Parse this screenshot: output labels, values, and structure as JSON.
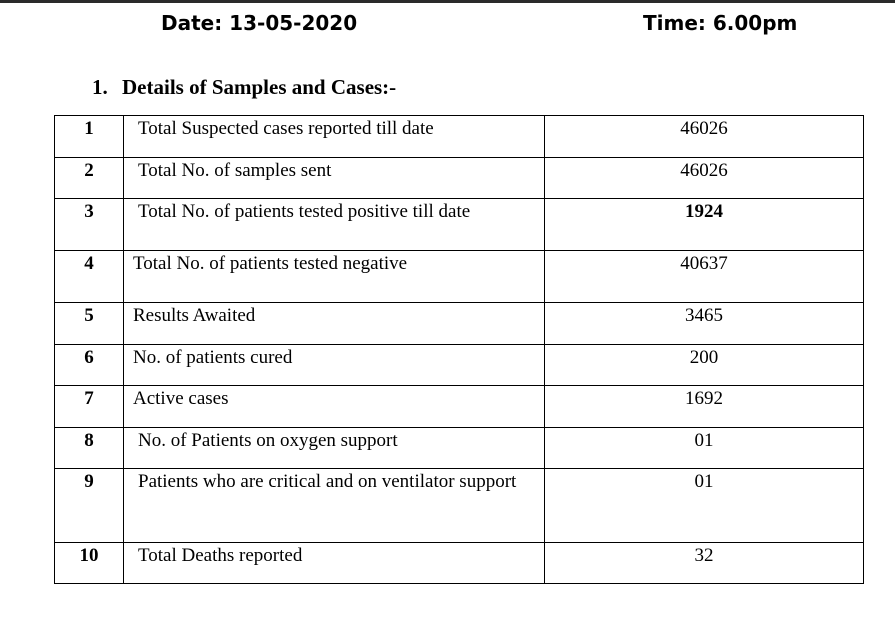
{
  "header": {
    "date": "Date: 13-05-2020",
    "time": "Time: 6.00pm"
  },
  "section": {
    "number": "1.",
    "title": "Details of Samples and Cases:-"
  },
  "rows": [
    {
      "no": "1",
      "label": "Total Suspected cases reported till date",
      "value": "46026"
    },
    {
      "no": "2",
      "label": "Total No. of samples sent",
      "value": "46026"
    },
    {
      "no": "3",
      "label": "Total No. of patients tested positive till date",
      "value": "1924"
    },
    {
      "no": "4",
      "label": "Total No. of patients tested negative",
      "value": "40637"
    },
    {
      "no": "5",
      "label": "Results Awaited",
      "value": "3465"
    },
    {
      "no": "6",
      "label": "No. of patients cured",
      "value": "200"
    },
    {
      "no": "7",
      "label": "Active cases",
      "value": "1692"
    },
    {
      "no": "8",
      "label": "No. of Patients on oxygen support",
      "value": "01"
    },
    {
      "no": "9",
      "label": "Patients who are critical and on ventilator support",
      "value": "01"
    },
    {
      "no": "10",
      "label": "Total Deaths reported",
      "value": "32"
    }
  ]
}
